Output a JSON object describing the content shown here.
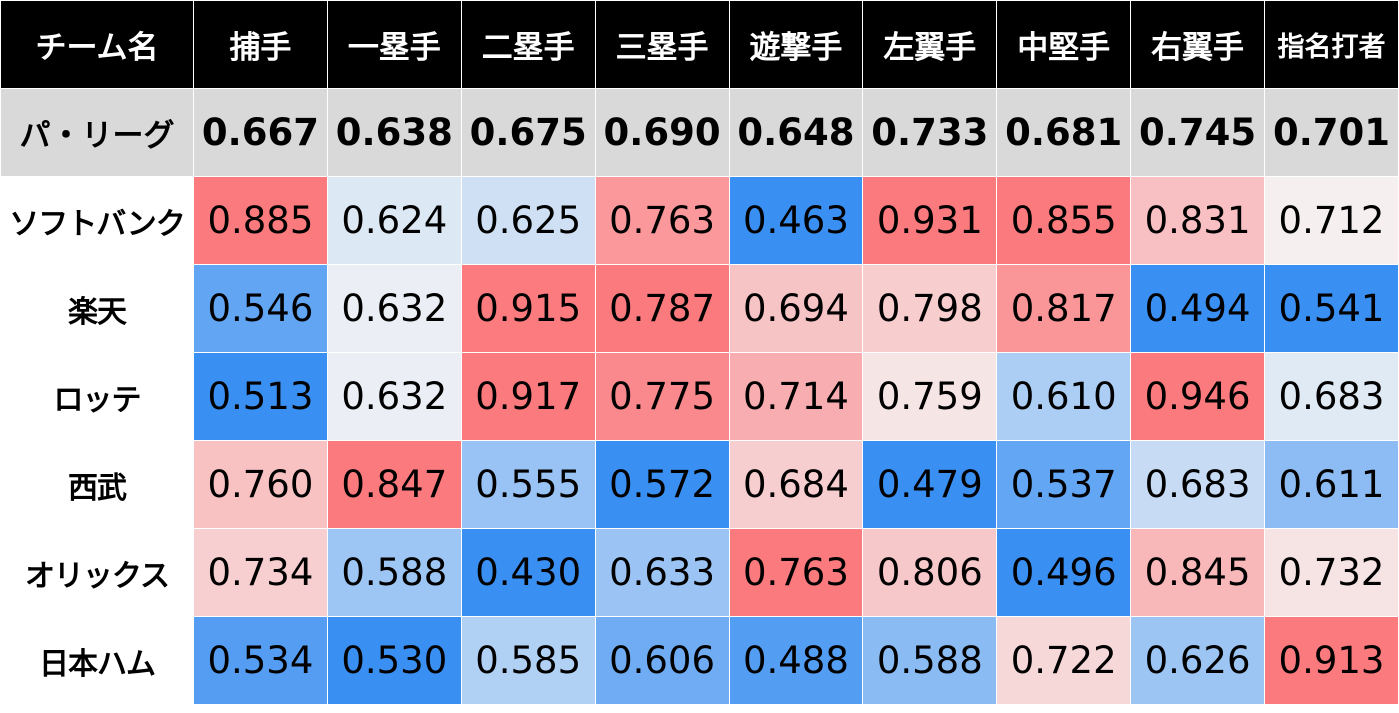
{
  "chart_data": {
    "type": "heatmap",
    "corner_label": "チーム名",
    "columns": [
      "捕手",
      "一塁手",
      "二塁手",
      "三塁手",
      "遊撃手",
      "左翼手",
      "中堅手",
      "右翼手",
      "指名打者"
    ],
    "league": {
      "label": "パ・リーグ",
      "values": [
        "0.667",
        "0.638",
        "0.675",
        "0.690",
        "0.648",
        "0.733",
        "0.681",
        "0.745",
        "0.701"
      ]
    },
    "teams": [
      {
        "name": "ソフトバンク",
        "values": [
          "0.885",
          "0.624",
          "0.625",
          "0.763",
          "0.463",
          "0.931",
          "0.855",
          "0.831",
          "0.712"
        ]
      },
      {
        "name": "楽天",
        "values": [
          "0.546",
          "0.632",
          "0.915",
          "0.787",
          "0.694",
          "0.798",
          "0.817",
          "0.494",
          "0.541"
        ]
      },
      {
        "name": "ロッテ",
        "values": [
          "0.513",
          "0.632",
          "0.917",
          "0.775",
          "0.714",
          "0.759",
          "0.610",
          "0.946",
          "0.683"
        ]
      },
      {
        "name": "西武",
        "values": [
          "0.760",
          "0.847",
          "0.555",
          "0.572",
          "0.684",
          "0.479",
          "0.537",
          "0.683",
          "0.611"
        ]
      },
      {
        "name": "オリックス",
        "values": [
          "0.734",
          "0.588",
          "0.430",
          "0.633",
          "0.763",
          "0.806",
          "0.496",
          "0.845",
          "0.732"
        ]
      },
      {
        "name": "日本ハム",
        "values": [
          "0.534",
          "0.530",
          "0.585",
          "0.606",
          "0.488",
          "0.588",
          "0.722",
          "0.626",
          "0.913"
        ]
      }
    ],
    "color_scale": {
      "low": "#3a8ff2",
      "mid": "#f5f5f5",
      "high": "#fb7a7e"
    }
  }
}
